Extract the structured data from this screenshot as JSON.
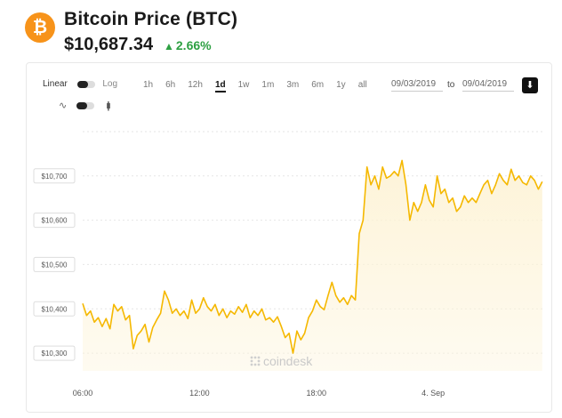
{
  "header": {
    "coin_symbol_glyph": "₿",
    "title": "Bitcoin Price (BTC)",
    "price": "$10,687.34",
    "change": "2.66%",
    "change_color": "#2ea043"
  },
  "controls": {
    "scale_linear": "Linear",
    "scale_log": "Log",
    "ranges": [
      "1h",
      "6h",
      "12h",
      "1d",
      "1w",
      "1m",
      "3m",
      "6m",
      "1y",
      "all"
    ],
    "active_range": "1d",
    "date_from": "09/03/2019",
    "to_label": "to",
    "date_to": "09/04/2019"
  },
  "watermark": "coindesk",
  "chart_data": {
    "type": "area",
    "line_color": "#f5b800",
    "fill_color": "#fdf3d6",
    "grid": true,
    "y_ticks": [
      "$10,300",
      "$10,400",
      "$10,500",
      "$10,600",
      "$10,700"
    ],
    "y_tick_values": [
      10300,
      10400,
      10500,
      10600,
      10700
    ],
    "x_ticks": [
      "06:00",
      "12:00",
      "18:00",
      "4. Sep"
    ],
    "x_tick_values": [
      6,
      12,
      18,
      24
    ],
    "xlim": [
      6,
      29.7
    ],
    "ylim": [
      10260,
      10810
    ],
    "x_unit": "hours since 09/03/2019 00:00",
    "x": [
      6.0,
      6.2,
      6.4,
      6.6,
      6.8,
      7.0,
      7.2,
      7.4,
      7.6,
      7.8,
      8.0,
      8.2,
      8.4,
      8.6,
      8.8,
      9.0,
      9.2,
      9.4,
      9.6,
      9.8,
      10.0,
      10.2,
      10.4,
      10.6,
      10.8,
      11.0,
      11.2,
      11.4,
      11.6,
      11.8,
      12.0,
      12.2,
      12.4,
      12.6,
      12.8,
      13.0,
      13.2,
      13.4,
      13.6,
      13.8,
      14.0,
      14.2,
      14.4,
      14.6,
      14.8,
      15.0,
      15.2,
      15.4,
      15.6,
      15.8,
      16.0,
      16.2,
      16.4,
      16.6,
      16.8,
      17.0,
      17.2,
      17.4,
      17.6,
      17.8,
      18.0,
      18.2,
      18.4,
      18.6,
      18.8,
      19.0,
      19.2,
      19.4,
      19.6,
      19.8,
      20.0,
      20.2,
      20.4,
      20.6,
      20.8,
      21.0,
      21.2,
      21.4,
      21.6,
      21.8,
      22.0,
      22.2,
      22.4,
      22.6,
      22.8,
      23.0,
      23.2,
      23.4,
      23.6,
      23.8,
      24.0,
      24.2,
      24.4,
      24.6,
      24.8,
      25.0,
      25.2,
      25.4,
      25.6,
      25.8,
      26.0,
      26.2,
      26.4,
      26.6,
      26.8,
      27.0,
      27.2,
      27.4,
      27.6,
      27.8,
      28.0,
      28.2,
      28.4,
      28.6,
      28.8,
      29.0,
      29.2,
      29.4,
      29.6
    ],
    "values": [
      10412,
      10385,
      10395,
      10370,
      10380,
      10360,
      10378,
      10355,
      10410,
      10395,
      10405,
      10375,
      10385,
      10310,
      10340,
      10350,
      10365,
      10325,
      10358,
      10375,
      10390,
      10440,
      10420,
      10390,
      10400,
      10385,
      10395,
      10378,
      10420,
      10390,
      10400,
      10425,
      10405,
      10395,
      10410,
      10385,
      10400,
      10380,
      10395,
      10388,
      10405,
      10392,
      10410,
      10380,
      10395,
      10385,
      10400,
      10375,
      10380,
      10370,
      10382,
      10360,
      10335,
      10345,
      10300,
      10350,
      10330,
      10345,
      10380,
      10395,
      10420,
      10405,
      10398,
      10430,
      10460,
      10430,
      10415,
      10425,
      10410,
      10430,
      10420,
      10570,
      10600,
      10720,
      10680,
      10700,
      10670,
      10720,
      10695,
      10700,
      10710,
      10700,
      10735,
      10680,
      10600,
      10640,
      10620,
      10640,
      10680,
      10645,
      10630,
      10700,
      10660,
      10670,
      10640,
      10650,
      10620,
      10630,
      10655,
      10640,
      10650,
      10640,
      10660,
      10680,
      10690,
      10660,
      10680,
      10705,
      10690,
      10680,
      10715,
      10690,
      10700,
      10685,
      10680,
      10700,
      10690,
      10670,
      10687
    ]
  }
}
